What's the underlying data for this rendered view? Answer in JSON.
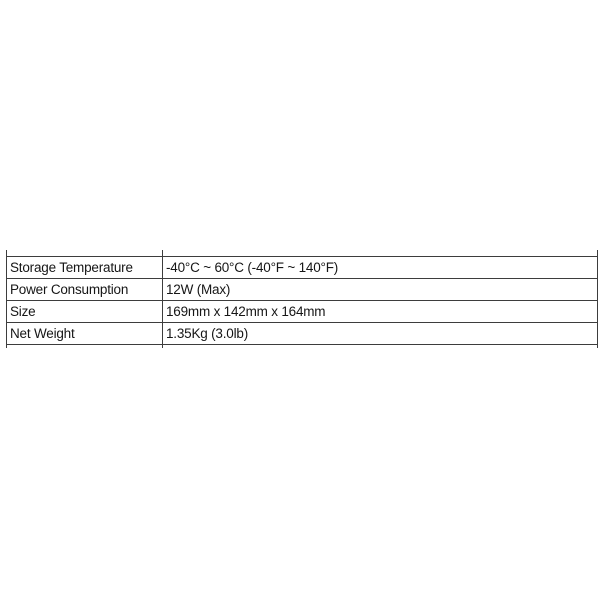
{
  "page": {
    "background": "#ffffff",
    "border_color": "#3d3d3d",
    "text_color": "#161616"
  },
  "table": {
    "rows": [
      {
        "label": "Storage Temperature",
        "value": "-40°C ~ 60°C (-40°F ~ 140°F)"
      },
      {
        "label": "Power Consumption",
        "value": "12W (Max)"
      },
      {
        "label": "Size",
        "value": "169mm x 142mm x 164mm"
      },
      {
        "label": "Net Weight",
        "value": "1.35Kg (3.0lb)"
      }
    ]
  }
}
